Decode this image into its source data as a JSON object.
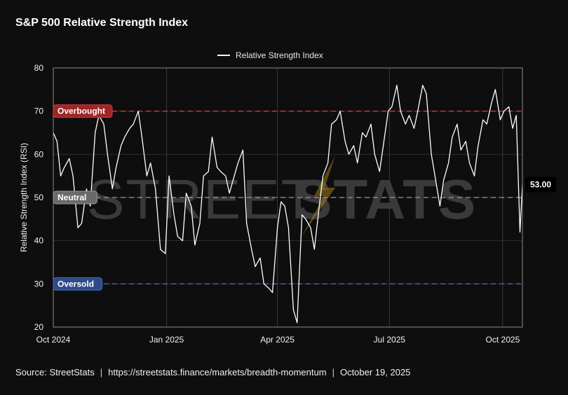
{
  "page": {
    "title": "S&P 500 Relative Strength Index",
    "legend_label": "Relative Strength Index",
    "source": {
      "label": "Source:",
      "name": "StreetStats",
      "url": "https://streetstats.finance/markets/breadth-momentum",
      "date": "October 19, 2025"
    },
    "watermark": {
      "part1": "STREET",
      "part2": "STATS"
    }
  },
  "colors": {
    "background": "#0e0e0e",
    "line": "#ffffff",
    "overbought": "#d93a3a",
    "neutral": "#9a9a9a",
    "oversold": "#4a68b4",
    "bolt": "#a07a1a"
  },
  "chart_data": {
    "type": "line",
    "title": "S&P 500 Relative Strength Index",
    "ylabel": "Relative Strength Index (RSI)",
    "xlabel": "",
    "ylim": [
      20,
      80
    ],
    "yticks": [
      20,
      30,
      40,
      50,
      60,
      70,
      80
    ],
    "xticks": [
      "Oct 2024",
      "Jan 2025",
      "Apr 2025",
      "Jul 2025",
      "Oct 2025"
    ],
    "grid": true,
    "legend_position": "top-center",
    "reference_lines": [
      {
        "label": "Overbought",
        "value": 70
      },
      {
        "label": "Neutral",
        "value": 50
      },
      {
        "label": "Oversold",
        "value": 30
      }
    ],
    "last_value_label": "53.00",
    "series": [
      {
        "name": "Relative Strength Index",
        "points": [
          [
            "2024-10-01",
            65
          ],
          [
            "2024-10-04",
            63
          ],
          [
            "2024-10-07",
            55
          ],
          [
            "2024-10-10",
            57
          ],
          [
            "2024-10-14",
            59
          ],
          [
            "2024-10-17",
            55
          ],
          [
            "2024-10-21",
            43
          ],
          [
            "2024-10-24",
            44
          ],
          [
            "2024-10-28",
            52
          ],
          [
            "2024-10-31",
            48
          ],
          [
            "2024-11-04",
            65
          ],
          [
            "2024-11-07",
            69
          ],
          [
            "2024-11-11",
            67
          ],
          [
            "2024-11-14",
            60
          ],
          [
            "2024-11-18",
            52
          ],
          [
            "2024-11-21",
            57
          ],
          [
            "2024-11-25",
            62
          ],
          [
            "2024-11-28",
            64
          ],
          [
            "2024-12-02",
            66
          ],
          [
            "2024-12-05",
            67
          ],
          [
            "2024-12-09",
            70
          ],
          [
            "2024-12-12",
            64
          ],
          [
            "2024-12-16",
            55
          ],
          [
            "2024-12-19",
            58
          ],
          [
            "2024-12-23",
            52
          ],
          [
            "2024-12-27",
            38
          ],
          [
            "2024-12-31",
            37
          ],
          [
            "2025-01-03",
            55
          ],
          [
            "2025-01-07",
            46
          ],
          [
            "2025-01-10",
            41
          ],
          [
            "2025-01-14",
            40
          ],
          [
            "2025-01-17",
            51
          ],
          [
            "2025-01-21",
            48
          ],
          [
            "2025-01-24",
            39
          ],
          [
            "2025-01-28",
            44
          ],
          [
            "2025-01-31",
            55
          ],
          [
            "2025-02-04",
            56
          ],
          [
            "2025-02-07",
            64
          ],
          [
            "2025-02-11",
            57
          ],
          [
            "2025-02-14",
            56
          ],
          [
            "2025-02-18",
            55
          ],
          [
            "2025-02-21",
            51
          ],
          [
            "2025-02-25",
            55
          ],
          [
            "2025-02-28",
            58
          ],
          [
            "2025-03-04",
            61
          ],
          [
            "2025-03-07",
            44
          ],
          [
            "2025-03-11",
            38
          ],
          [
            "2025-03-14",
            34
          ],
          [
            "2025-03-18",
            36
          ],
          [
            "2025-03-21",
            30
          ],
          [
            "2025-03-25",
            29
          ],
          [
            "2025-03-28",
            28
          ],
          [
            "2025-04-01",
            43
          ],
          [
            "2025-04-04",
            49
          ],
          [
            "2025-04-07",
            48
          ],
          [
            "2025-04-10",
            43
          ],
          [
            "2025-04-14",
            24
          ],
          [
            "2025-04-17",
            21
          ],
          [
            "2025-04-21",
            46
          ],
          [
            "2025-04-24",
            45
          ],
          [
            "2025-04-28",
            43
          ],
          [
            "2025-05-01",
            38
          ],
          [
            "2025-05-05",
            48
          ],
          [
            "2025-05-08",
            55
          ],
          [
            "2025-05-12",
            58
          ],
          [
            "2025-05-15",
            67
          ],
          [
            "2025-05-19",
            68
          ],
          [
            "2025-05-22",
            70
          ],
          [
            "2025-05-26",
            63
          ],
          [
            "2025-05-29",
            60
          ],
          [
            "2025-06-02",
            62
          ],
          [
            "2025-06-05",
            58
          ],
          [
            "2025-06-09",
            65
          ],
          [
            "2025-06-12",
            64
          ],
          [
            "2025-06-16",
            67
          ],
          [
            "2025-06-19",
            60
          ],
          [
            "2025-06-23",
            56
          ],
          [
            "2025-06-26",
            62
          ],
          [
            "2025-06-30",
            70
          ],
          [
            "2025-07-03",
            71
          ],
          [
            "2025-07-07",
            76
          ],
          [
            "2025-07-10",
            70
          ],
          [
            "2025-07-14",
            67
          ],
          [
            "2025-07-17",
            69
          ],
          [
            "2025-07-21",
            66
          ],
          [
            "2025-07-24",
            70
          ],
          [
            "2025-07-28",
            76
          ],
          [
            "2025-07-31",
            74
          ],
          [
            "2025-08-04",
            60
          ],
          [
            "2025-08-07",
            55
          ],
          [
            "2025-08-11",
            48
          ],
          [
            "2025-08-14",
            54
          ],
          [
            "2025-08-18",
            58
          ],
          [
            "2025-08-21",
            64
          ],
          [
            "2025-08-25",
            67
          ],
          [
            "2025-08-28",
            61
          ],
          [
            "2025-09-01",
            63
          ],
          [
            "2025-09-04",
            58
          ],
          [
            "2025-09-08",
            55
          ],
          [
            "2025-09-11",
            62
          ],
          [
            "2025-09-15",
            68
          ],
          [
            "2025-09-18",
            67
          ],
          [
            "2025-09-22",
            72
          ],
          [
            "2025-09-25",
            75
          ],
          [
            "2025-09-29",
            68
          ],
          [
            "2025-10-02",
            70
          ],
          [
            "2025-10-06",
            71
          ],
          [
            "2025-10-09",
            66
          ],
          [
            "2025-10-12",
            69
          ],
          [
            "2025-10-15",
            42
          ],
          [
            "2025-10-17",
            53
          ]
        ]
      }
    ]
  }
}
